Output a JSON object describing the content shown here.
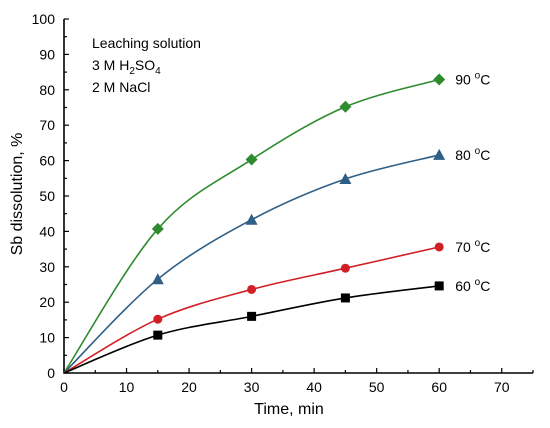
{
  "chart_data": {
    "type": "scatter",
    "title": "",
    "xlabel": "Time, min",
    "ylabel": "Sb dissolution, %",
    "xlim": [
      0,
      75
    ],
    "ylim": [
      0,
      100
    ],
    "xticks": [
      0,
      10,
      20,
      30,
      40,
      50,
      60,
      70
    ],
    "yticks": [
      0,
      10,
      20,
      30,
      40,
      50,
      60,
      70,
      80,
      90,
      100
    ],
    "grid": false,
    "annotation": {
      "line1": "Leaching solution",
      "line2_prefix": "3 M H",
      "line2_sub1": "2",
      "line2_mid": "SO",
      "line2_sub2": "4",
      "line3": "2 M NaCl"
    },
    "series": [
      {
        "label_value": "90",
        "label_sup": "o",
        "label_unit": "C",
        "color": "#2e8b2e",
        "marker": "diamond",
        "x": [
          15,
          30,
          45,
          60
        ],
        "y": [
          40.7,
          60.3,
          75.2,
          82.9
        ]
      },
      {
        "label_value": "80",
        "label_sup": "o",
        "label_unit": "C",
        "color": "#2f5f86",
        "marker": "triangle",
        "x": [
          15,
          30,
          45,
          60
        ],
        "y": [
          26.5,
          43.3,
          54.8,
          61.6
        ]
      },
      {
        "label_value": "70",
        "label_sup": "o",
        "label_unit": "C",
        "color": "#d21f26",
        "marker": "circle",
        "x": [
          15,
          30,
          45,
          60
        ],
        "y": [
          15.2,
          23.6,
          29.6,
          35.6
        ]
      },
      {
        "label_value": "60",
        "label_sup": "o",
        "label_unit": "C",
        "color": "#000000",
        "marker": "square",
        "x": [
          15,
          30,
          45,
          60
        ],
        "y": [
          10.7,
          16.0,
          21.2,
          24.6
        ]
      }
    ]
  }
}
